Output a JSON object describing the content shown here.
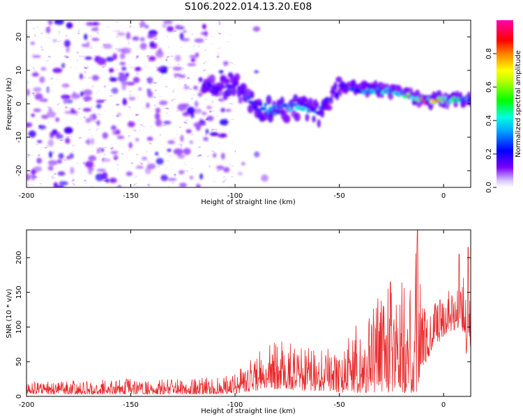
{
  "figure": {
    "title": "S106.2022.014.13.20.E08"
  },
  "chart_data": [
    {
      "type": "heatmap",
      "title": "",
      "xlabel": "Height of straight line (km)",
      "ylabel": "Frequency (Hz)",
      "xlim": [
        -200,
        13
      ],
      "ylim": [
        -25,
        25
      ],
      "xticks": [
        -200,
        -150,
        -100,
        -50,
        0
      ],
      "yticks": [
        -20,
        -10,
        0,
        10,
        20
      ],
      "colorbar": {
        "label": "Normalized spectral amplitude",
        "range": [
          0,
          1
        ],
        "ticks": [
          0.0,
          0.2,
          0.4,
          0.6,
          0.8
        ],
        "colormap": [
          "#ffffff",
          "#7a00ff",
          "#0000ff",
          "#00ffff",
          "#00ff00",
          "#ffff00",
          "#ff8000",
          "#ff0000",
          "#ff00aa"
        ]
      },
      "ridge": {
        "description_points_x_km": [
          -113,
          -100,
          -90,
          -80,
          -70,
          -60,
          -50,
          -40,
          -30,
          -20,
          -10,
          0,
          13
        ],
        "frequency_hz": [
          5,
          6,
          -1,
          -2,
          -1,
          -3,
          5,
          4,
          4,
          3,
          1,
          1,
          1
        ],
        "peak_amplitude": [
          0.2,
          0.2,
          0.3,
          0.35,
          0.45,
          0.3,
          0.2,
          0.35,
          0.45,
          0.55,
          0.9,
          0.8,
          0.35
        ]
      }
    },
    {
      "type": "line",
      "title": "",
      "xlabel": "Height of straight line (km)",
      "ylabel": "SNR (10 * v/v)",
      "xlim": [
        -200,
        13
      ],
      "ylim": [
        0,
        240
      ],
      "xticks": [
        -200,
        -150,
        -100,
        -50,
        0
      ],
      "yticks": [
        0,
        50,
        100,
        150,
        200
      ],
      "color": "#e8282a",
      "series": [
        {
          "x": [
            -200,
            -190,
            -180,
            -170,
            -160,
            -150,
            -140,
            -130,
            -120,
            -110,
            -100,
            -95,
            -90,
            -85,
            -80,
            -75,
            -70,
            -65,
            -60,
            -55,
            -50,
            -45,
            -40,
            -35,
            -30,
            -25,
            -20,
            -15,
            -13,
            -12,
            -10,
            -5,
            0,
            5,
            8,
            10,
            11,
            12,
            13
          ],
          "y": [
            10,
            10,
            11,
            12,
            12,
            13,
            12,
            12,
            13,
            14,
            18,
            22,
            30,
            40,
            38,
            45,
            40,
            35,
            38,
            30,
            25,
            40,
            50,
            55,
            60,
            65,
            70,
            80,
            80,
            20,
            80,
            100,
            110,
            120,
            130,
            115,
            75,
            190,
            100
          ],
          "envelope_low": [
            3,
            3,
            3,
            3,
            3,
            3,
            3,
            3,
            3,
            3,
            4,
            6,
            8,
            10,
            10,
            10,
            8,
            8,
            8,
            8,
            5,
            5,
            5,
            5,
            5,
            5,
            5,
            5,
            5,
            5,
            40,
            70,
            85,
            95,
            100,
            90,
            60,
            90,
            70
          ],
          "envelope_high": [
            22,
            22,
            23,
            25,
            25,
            26,
            24,
            25,
            26,
            28,
            35,
            45,
            62,
            75,
            80,
            78,
            72,
            70,
            75,
            70,
            60,
            90,
            110,
            130,
            155,
            160,
            165,
            175,
            235,
            235,
            125,
            145,
            145,
            160,
            150,
            205,
            130,
            215,
            180
          ],
          "spikes": [
            {
              "x": -12.5,
              "y": 240
            },
            {
              "x": 11.8,
              "y": 215
            },
            {
              "x": 7.5,
              "y": 205
            },
            {
              "x": -25.5,
              "y": 165
            }
          ]
        }
      ]
    }
  ]
}
